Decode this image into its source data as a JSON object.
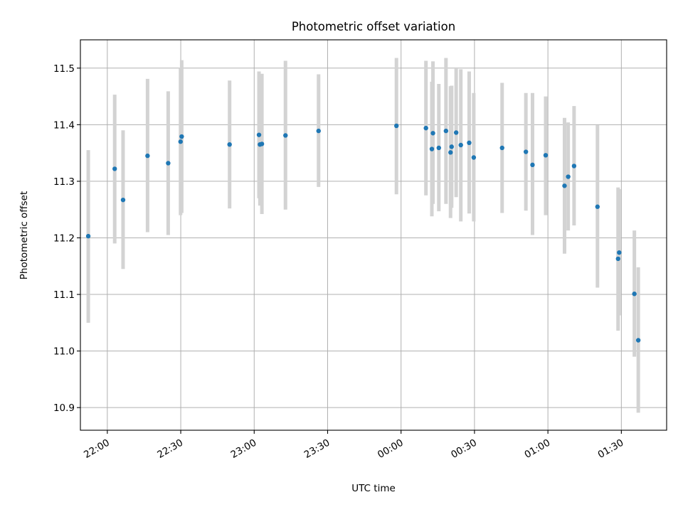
{
  "chart_data": {
    "type": "scatter",
    "title": "Photometric offset variation",
    "xlabel": "UTC time",
    "ylabel": "Photometric offset",
    "x_axis_type": "time",
    "xlim": [
      "21:49:00",
      "01:48:30"
    ],
    "ylim": [
      10.86,
      11.55
    ],
    "x_ticks": [
      {
        "time": "22:00:00",
        "label": "22:00"
      },
      {
        "time": "22:30:00",
        "label": "22:30"
      },
      {
        "time": "23:00:00",
        "label": "23:00"
      },
      {
        "time": "23:30:00",
        "label": "23:30"
      },
      {
        "time": "00:00:00",
        "label": "00:00"
      },
      {
        "time": "00:30:00",
        "label": "00:30"
      },
      {
        "time": "01:00:00",
        "label": "01:00"
      },
      {
        "time": "01:30:00",
        "label": "01:30"
      }
    ],
    "y_ticks": [
      {
        "value": 10.9,
        "label": "10.9"
      },
      {
        "value": 11.0,
        "label": "11.0"
      },
      {
        "value": 11.1,
        "label": "11.1"
      },
      {
        "value": 11.2,
        "label": "11.2"
      },
      {
        "value": 11.3,
        "label": "11.3"
      },
      {
        "value": 11.4,
        "label": "11.4"
      },
      {
        "value": 11.5,
        "label": "11.5"
      }
    ],
    "grid": true,
    "point_color": "#1f77b4",
    "error_color": "#d3d3d3",
    "points": [
      {
        "t": "21:52:13",
        "y": 11.203,
        "lo": 11.05,
        "hi": 11.355
      },
      {
        "t": "22:03:01",
        "y": 11.322,
        "lo": 11.19,
        "hi": 11.453
      },
      {
        "t": "22:06:26",
        "y": 11.267,
        "lo": 11.145,
        "hi": 11.39
      },
      {
        "t": "22:16:26",
        "y": 11.345,
        "lo": 11.21,
        "hi": 11.481
      },
      {
        "t": "22:24:52",
        "y": 11.332,
        "lo": 11.205,
        "hi": 11.459
      },
      {
        "t": "22:29:55",
        "y": 11.37,
        "lo": 11.24,
        "hi": 11.5
      },
      {
        "t": "22:30:23",
        "y": 11.379,
        "lo": 11.244,
        "hi": 11.514
      },
      {
        "t": "22:49:57",
        "y": 11.365,
        "lo": 11.252,
        "hi": 11.478
      },
      {
        "t": "23:01:58",
        "y": 11.382,
        "lo": 11.27,
        "hi": 11.494
      },
      {
        "t": "23:02:21",
        "y": 11.365,
        "lo": 11.257,
        "hi": 11.475
      },
      {
        "t": "23:03:09",
        "y": 11.366,
        "lo": 11.242,
        "hi": 11.49
      },
      {
        "t": "23:12:47",
        "y": 11.381,
        "lo": 11.25,
        "hi": 11.513
      },
      {
        "t": "23:26:18",
        "y": 11.389,
        "lo": 11.29,
        "hi": 11.489
      },
      {
        "t": "23:58:07",
        "y": 11.398,
        "lo": 11.277,
        "hi": 11.518
      },
      {
        "t": "00:10:10",
        "y": 11.394,
        "lo": 11.275,
        "hi": 11.513
      },
      {
        "t": "00:12:35",
        "y": 11.357,
        "lo": 11.238,
        "hi": 11.476
      },
      {
        "t": "00:13:02",
        "y": 11.385,
        "lo": 11.26,
        "hi": 11.512
      },
      {
        "t": "00:15:26",
        "y": 11.359,
        "lo": 11.247,
        "hi": 11.472
      },
      {
        "t": "00:18:21",
        "y": 11.389,
        "lo": 11.26,
        "hi": 11.518
      },
      {
        "t": "00:20:13",
        "y": 11.351,
        "lo": 11.235,
        "hi": 11.468
      },
      {
        "t": "00:20:40",
        "y": 11.361,
        "lo": 11.253,
        "hi": 11.469
      },
      {
        "t": "00:22:31",
        "y": 11.386,
        "lo": 11.272,
        "hi": 11.499
      },
      {
        "t": "00:24:25",
        "y": 11.364,
        "lo": 11.229,
        "hi": 11.498
      },
      {
        "t": "00:27:50",
        "y": 11.368,
        "lo": 11.243,
        "hi": 11.494
      },
      {
        "t": "00:29:42",
        "y": 11.342,
        "lo": 11.229,
        "hi": 11.456
      },
      {
        "t": "00:41:17",
        "y": 11.359,
        "lo": 11.244,
        "hi": 11.474
      },
      {
        "t": "00:51:00",
        "y": 11.352,
        "lo": 11.248,
        "hi": 11.456
      },
      {
        "t": "00:53:42",
        "y": 11.329,
        "lo": 11.205,
        "hi": 11.456
      },
      {
        "t": "00:59:05",
        "y": 11.346,
        "lo": 11.24,
        "hi": 11.45
      },
      {
        "t": "01:06:47",
        "y": 11.292,
        "lo": 11.172,
        "hi": 11.412
      },
      {
        "t": "01:08:17",
        "y": 11.308,
        "lo": 11.213,
        "hi": 11.404
      },
      {
        "t": "01:10:41",
        "y": 11.327,
        "lo": 11.222,
        "hi": 11.433
      },
      {
        "t": "01:20:15",
        "y": 11.255,
        "lo": 11.112,
        "hi": 11.399
      },
      {
        "t": "01:28:40",
        "y": 11.163,
        "lo": 11.036,
        "hi": 11.289
      },
      {
        "t": "01:29:07",
        "y": 11.174,
        "lo": 11.063,
        "hi": 11.286
      },
      {
        "t": "01:35:19",
        "y": 11.101,
        "lo": 10.99,
        "hi": 11.213
      },
      {
        "t": "01:36:55",
        "y": 11.019,
        "lo": 10.891,
        "hi": 11.148
      }
    ]
  }
}
